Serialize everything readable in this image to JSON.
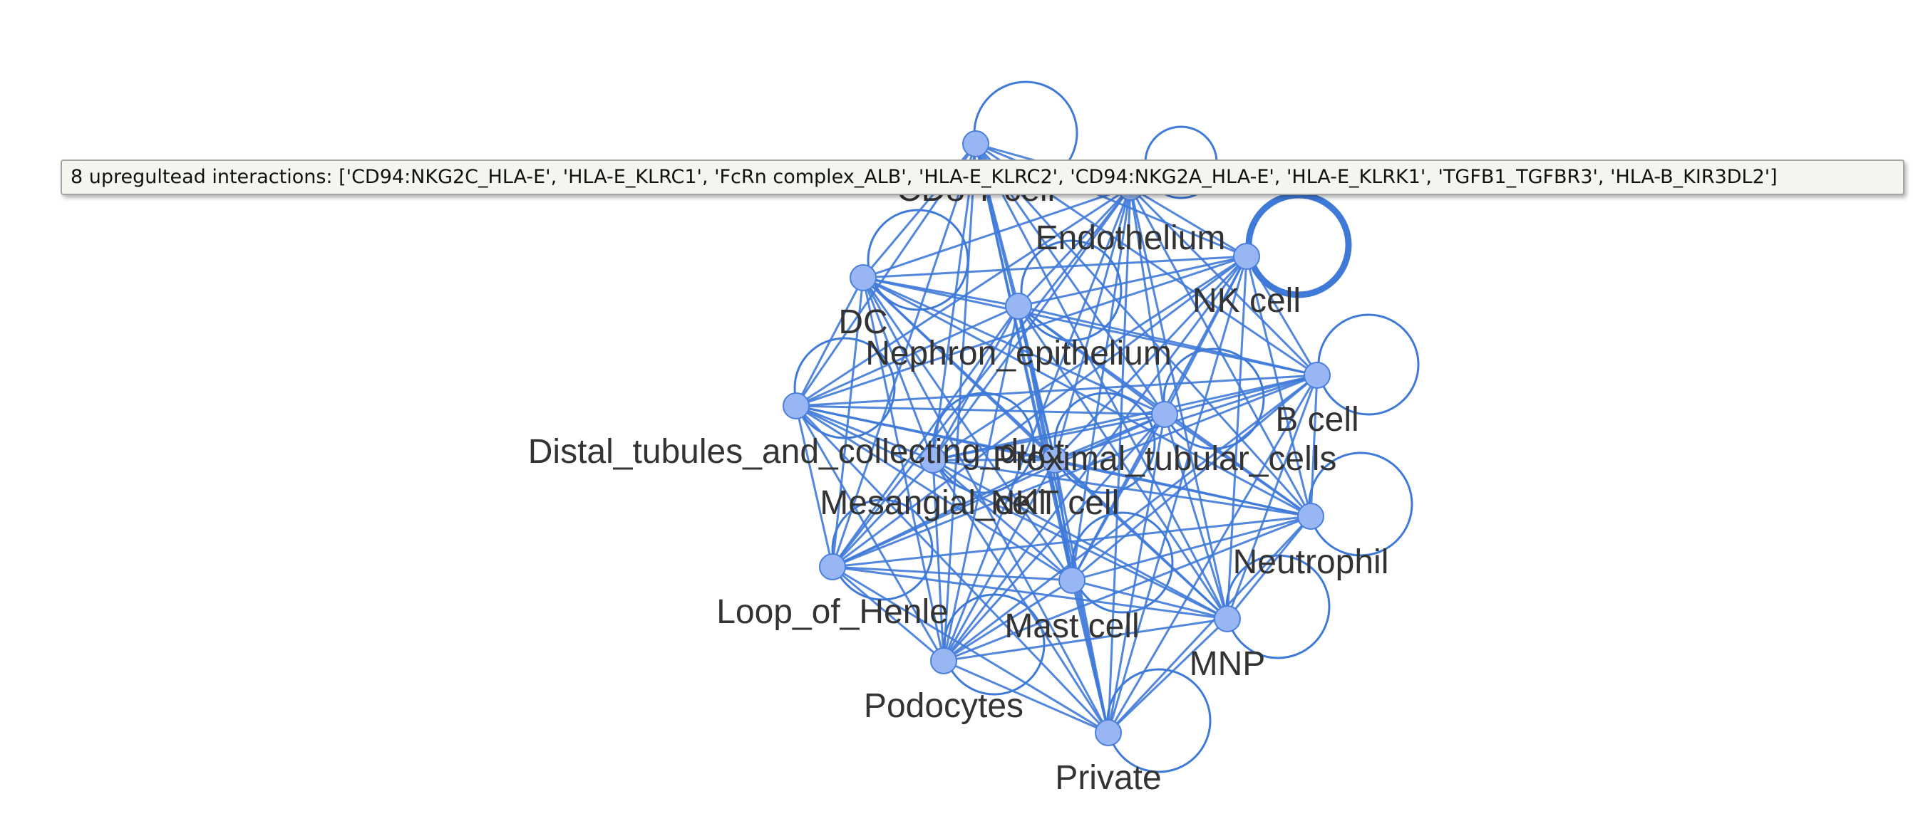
{
  "tooltip": {
    "text": "8 upregultead interactions: ['CD94:NKG2C_HLA-E', 'HLA-E_KLRC1', 'FcRn complex_ALB', 'HLA-E_KLRC2', 'CD94:NKG2A_HLA-E', 'HLA-E_KLRK1', 'TGFB1_TGFBR3', 'HLA-B_KIR3DL2']"
  },
  "colors": {
    "edge": "#3f7ad9",
    "node_fill": "#98b6f3",
    "node_stroke": "#4a7fdc",
    "label": "#333333"
  },
  "graph": {
    "nodes": [
      {
        "id": "cd8",
        "label": "CD8 T cell"
      },
      {
        "id": "endo",
        "label": "Endothelium"
      },
      {
        "id": "nk",
        "label": "NK cell"
      },
      {
        "id": "dc",
        "label": "DC"
      },
      {
        "id": "neph",
        "label": "Nephron_epithelium"
      },
      {
        "id": "bcell",
        "label": "B cell"
      },
      {
        "id": "dist",
        "label": "Distal_tubules_and_collecting_duct"
      },
      {
        "id": "prox",
        "label": "Proximal_tubular_cells"
      },
      {
        "id": "mes",
        "label": "Mesangial_cell"
      },
      {
        "id": "nkt",
        "label": "NKT cell"
      },
      {
        "id": "neut",
        "label": "Neutrophil"
      },
      {
        "id": "loop",
        "label": "Loop_of_Henle"
      },
      {
        "id": "mast",
        "label": "Mast cell"
      },
      {
        "id": "mnp",
        "label": "MNP"
      },
      {
        "id": "podo",
        "label": "Podocytes"
      },
      {
        "id": "priv",
        "label": "Private"
      }
    ]
  }
}
